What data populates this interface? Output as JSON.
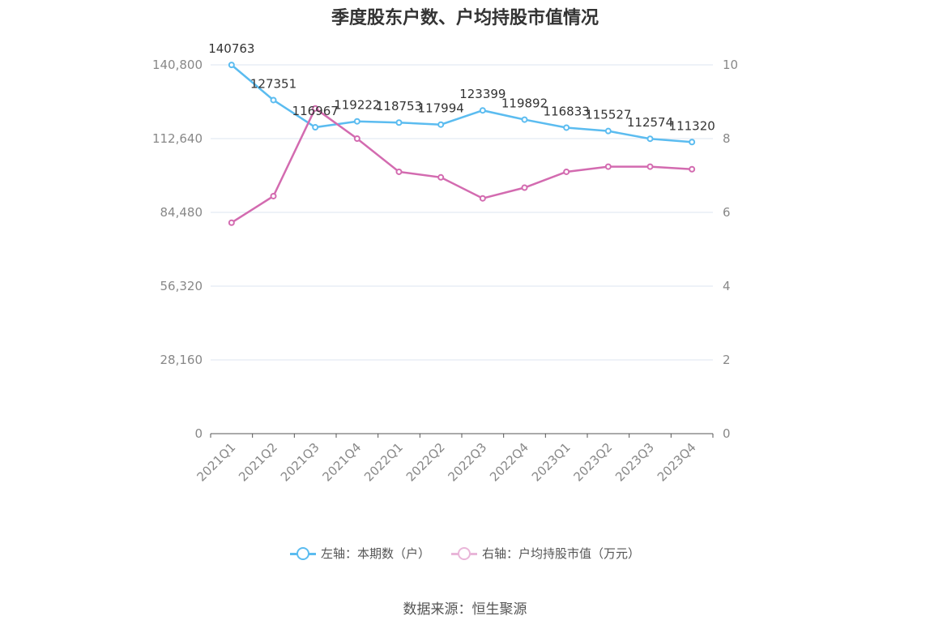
{
  "chart_data": {
    "type": "line",
    "title": "季度股东户数、户均持股市值情况",
    "categories": [
      "2021Q1",
      "2021Q2",
      "2021Q3",
      "2021Q4",
      "2022Q1",
      "2022Q2",
      "2022Q3",
      "2022Q4",
      "2023Q1",
      "2023Q2",
      "2023Q3",
      "2023Q4"
    ],
    "series": [
      {
        "name": "左轴：本期数（户）",
        "axis": "left",
        "color": "#5bbcf0",
        "values": [
          140763,
          127351,
          116967,
          119222,
          118753,
          117994,
          123399,
          119892,
          116833,
          115527,
          112574,
          111320
        ],
        "labels": [
          "140763",
          "127351",
          "116967",
          "119222",
          "118753",
          "117994",
          "123399",
          "119892",
          "116833",
          "115527",
          "112574",
          "111320"
        ]
      },
      {
        "name": "右轴：户均持股市值（万元）",
        "axis": "right",
        "color": "#d36bb0",
        "values": [
          5.72,
          6.44,
          8.82,
          8.0,
          7.1,
          6.95,
          6.38,
          6.67,
          7.1,
          7.24,
          7.24,
          7.17
        ]
      }
    ],
    "y_left": {
      "min": 0,
      "max": 140800,
      "ticks": [
        0,
        28160,
        56320,
        84480,
        112640,
        140800
      ],
      "tick_labels": [
        "0",
        "28,160",
        "56,320",
        "84,480",
        "112,640",
        "140,800"
      ]
    },
    "y_right": {
      "min": 0,
      "max": 10,
      "ticks": [
        0,
        2,
        4,
        6,
        8,
        10
      ],
      "tick_labels": [
        "0",
        "2",
        "4",
        "6",
        "8",
        "10"
      ]
    },
    "grid": true,
    "legend_position": "bottom-center",
    "source": "数据来源：恒生聚源"
  }
}
